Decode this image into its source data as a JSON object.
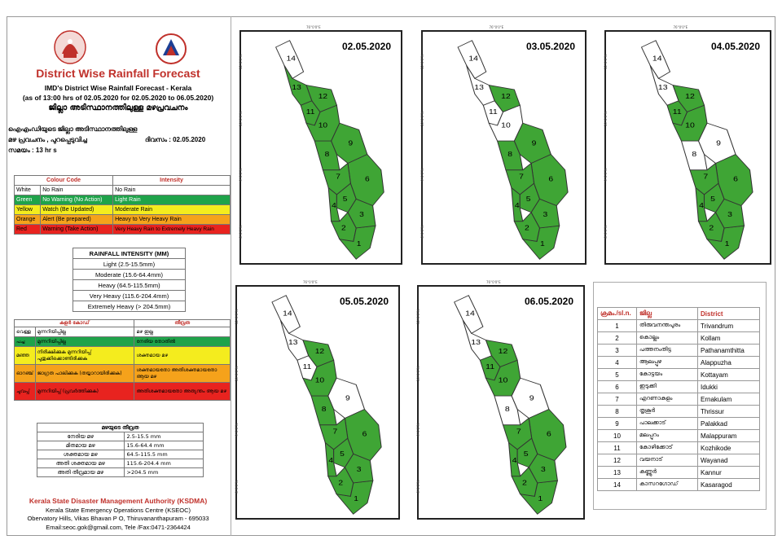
{
  "header": {
    "title": "District Wise Rainfall Forecast",
    "line1": "IMD's District Wise Rainfall Forecast - Kerala",
    "line2": "(as of 13:00 hrs of 02.05.2020  for 02.05.2020  to 06.05.2020)",
    "line3": "ജില്ലാ അടിസ്ഥാനത്തിലുള്ള മഴപ്രവചനം"
  },
  "info": {
    "l1": "ഐഎംഡിയുടെ  ജില്ലാ       അടിസ്ഥാനത്തിലുള്ള",
    "l2a": "മഴ  പ്രവചനം   , പുറപ്പെടുവിച്ച",
    "l2b": "ദിവസം : 02.05.2020",
    "l3": "സമയം : 13  hr s"
  },
  "colour_code": {
    "head_code": "Colour Code",
    "head_int": "Intensity",
    "rows": [
      {
        "colour": "White",
        "code": "No Rain",
        "intensity": "No Rain",
        "bg": "#ffffff",
        "fg": "#000000"
      },
      {
        "colour": "Green",
        "code": "No Warning (No Action)",
        "intensity": "Light Rain",
        "bg": "#1fa34a",
        "fg": "#ffffff"
      },
      {
        "colour": "Yellow",
        "code": "Watch (Be Updated)",
        "intensity": "Moderate Rain",
        "bg": "#f4ec1e",
        "fg": "#000000"
      },
      {
        "colour": "Orange",
        "code": "Alert (Be prepared)",
        "intensity": "Heavy to Very Heavy Rain",
        "bg": "#f5a21b",
        "fg": "#000000"
      },
      {
        "colour": "Red",
        "code": "Warning (Take Action)",
        "intensity": "Very Heavy Rain to Extremely Heavy Rain",
        "bg": "#e8231f",
        "fg": "#000000"
      }
    ]
  },
  "rain_intensity": {
    "head": "RAINFALL INTENSITY (MM)",
    "rows": [
      "Light (2.5-15.5mm)",
      "Moderate (15.6-64.4mm)",
      "Heavy (64.5-115.5mm)",
      "Very Heavy (115.6-204.4mm)",
      "Extremely Heavy (> 204.5mm)"
    ]
  },
  "ml_colour_code": {
    "h1": "കളർ കോഡ്",
    "h2": "തീവ്രത",
    "rows": [
      {
        "c": "വെള്ള",
        "code": "മുന്നറിയിപ്പില്ല",
        "int": "മഴ ഇല്ല",
        "bg": "#ffffff"
      },
      {
        "c": "പച്ച",
        "code": "മുന്നറിയിപ്പില്ല",
        "int": "നേരിയ തോതിൽ",
        "bg": "#1fa34a"
      },
      {
        "c": "മഞ്ഞ",
        "code": "നിരീക്ഷിക്കുക മുന്നറിയിപ്പ് പുതുക്കിക്കൊണ്ടിരിക്കുക",
        "int": "ശക്തമായ മഴ",
        "bg": "#f4ec1e"
      },
      {
        "c": "ഓറഞ്ച്",
        "code": "ജാഗ്രത പാലിക്കുക (തയ്യാറായിരിക്കുക)",
        "int": "ശക്തമായതോ അതിശക്തമായതോ ആയ മഴ",
        "bg": "#f5a21b"
      },
      {
        "c": "ചുവപ്പ്",
        "code": "മുന്നറിയിപ്പ് (പ്രവർത്തിക്കുക)",
        "int": "അതിശക്തമായതോ അത്യന്തം ആയ മഴ",
        "bg": "#e8231f"
      }
    ]
  },
  "ml_rain_intensity": {
    "head": "മഴയുടെ തീവ്രത",
    "rows": [
      {
        "n": "നേരിയ മഴ",
        "v": "2.5-15.5 mm"
      },
      {
        "n": "മിതമായ മഴ",
        "v": "15.6-64.4 mm"
      },
      {
        "n": "ശക്തമായ മഴ",
        "v": "64.5-115.5 mm"
      },
      {
        "n": "അതി ശക്തമായ മഴ",
        "v": "115.6-204.4 mm"
      },
      {
        "n": "അതി തീവ്രമായ മഴ",
        "v": ">204.5 mm"
      }
    ]
  },
  "footer": {
    "org": "Kerala State Disaster Management Authority (KSDMA)",
    "l1": "Kerala State Emergency Operations Centre (KSEOC)",
    "l2": "Obervatory Hills, Vikas Bhavan P O, Thiruvananthapuram - 695033",
    "l3": "Email:seoc.gok@gmail.com, Tele /Fax:0471-2364424"
  },
  "coords": {
    "lon": "76°0'0\"E",
    "lat1": "12°0'0\"N",
    "lat2": "10°0'0\"N",
    "lat3": "9°0'0\"N",
    "lat4": "8°0'0\"N"
  },
  "maps": [
    {
      "date": "02.05.2020",
      "white": [
        14
      ]
    },
    {
      "date": "03.05.2020",
      "white": [
        13,
        14,
        11,
        10
      ]
    },
    {
      "date": "04.05.2020",
      "white": [
        14,
        13,
        8,
        9
      ]
    },
    {
      "date": "05.05.2020",
      "white": [
        14,
        13,
        11,
        9
      ]
    },
    {
      "date": "06.05.2020",
      "white": [
        14,
        13,
        8,
        9
      ]
    }
  ],
  "colors": {
    "green": "#3fa535",
    "white": "#ffffff",
    "outline": "#333333"
  },
  "districts": {
    "h1": "ക്രമം./sl.n.",
    "h2": "ജില്ല",
    "h3": "District",
    "rows": [
      {
        "n": "1",
        "ml": "തിരുവനന്തപുരം",
        "en": "Trivandrum"
      },
      {
        "n": "2",
        "ml": "കൊല്ലം",
        "en": "Kollam"
      },
      {
        "n": "3",
        "ml": "പത്തനംതിട്ട",
        "en": "Pathanamthitta"
      },
      {
        "n": "4",
        "ml": "ആലപ്പുഴ",
        "en": "Alappuzha"
      },
      {
        "n": "5",
        "ml": "കോട്ടയം",
        "en": "Kottayam"
      },
      {
        "n": "6",
        "ml": "ഇടുക്കി",
        "en": "Idukki"
      },
      {
        "n": "7",
        "ml": "എറണാകുളം",
        "en": "Ernakulam"
      },
      {
        "n": "8",
        "ml": "തൃശൂർ",
        "en": "Thrissur"
      },
      {
        "n": "9",
        "ml": "പാലക്കാട്",
        "en": "Palakkad"
      },
      {
        "n": "10",
        "ml": "മലപ്പുറം",
        "en": "Malappuram"
      },
      {
        "n": "11",
        "ml": "കോഴിക്കോട്",
        "en": "Kozhikode"
      },
      {
        "n": "12",
        "ml": "വയനാട്",
        "en": "Wayanad"
      },
      {
        "n": "13",
        "ml": "കണ്ണൂർ",
        "en": "Kannur"
      },
      {
        "n": "14",
        "ml": "കാസറഗോഡ്",
        "en": "Kasaragod"
      }
    ]
  }
}
